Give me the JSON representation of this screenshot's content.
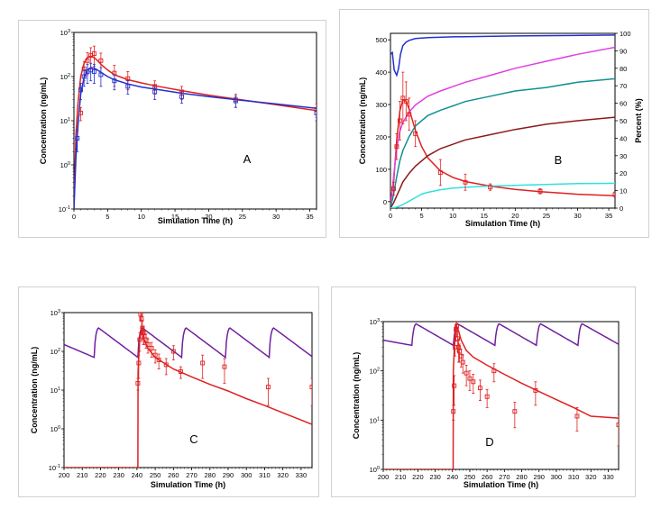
{
  "chart_data": [
    {
      "panel": "A",
      "type": "line",
      "xlabel": "Simulation Time (h)",
      "ylabel": "Concentration (ng/mL)",
      "xlim": [
        0,
        36
      ],
      "ylim": [
        0.1,
        1000
      ],
      "yscale": "log",
      "xticks": [
        "0",
        "5",
        "10",
        "15",
        "20",
        "25",
        "30",
        "35"
      ],
      "yticks": [
        "10-1",
        "100",
        "101",
        "102",
        "103"
      ],
      "series": [
        {
          "color": "#e02020",
          "kind": "line",
          "x": [
            0,
            0.3,
            0.6,
            1,
            1.5,
            2,
            2.5,
            3,
            3.5,
            4,
            5,
            6,
            8,
            10,
            12,
            16,
            20,
            24,
            30,
            36
          ],
          "y": [
            0.1,
            5,
            25,
            100,
            200,
            270,
            290,
            270,
            230,
            190,
            140,
            110,
            85,
            72,
            62,
            48,
            38,
            31,
            23,
            17
          ]
        },
        {
          "color": "#2030d0",
          "kind": "line",
          "x": [
            0,
            0.3,
            0.6,
            1,
            1.5,
            2,
            2.5,
            3,
            3.5,
            4,
            5,
            6,
            8,
            10,
            12,
            16,
            20,
            24,
            30,
            36
          ],
          "y": [
            0.1,
            1.5,
            8,
            40,
            95,
            140,
            160,
            155,
            140,
            125,
            100,
            85,
            68,
            58,
            52,
            42,
            35,
            30,
            24,
            19
          ]
        },
        {
          "color": "#e02020",
          "kind": "points",
          "x": [
            1,
            1.5,
            2,
            2.5,
            3,
            4,
            6,
            8,
            12,
            16,
            24,
            36
          ],
          "y": [
            15,
            150,
            230,
            300,
            330,
            230,
            120,
            90,
            60,
            45,
            30,
            18
          ],
          "err": [
            5,
            70,
            120,
            150,
            160,
            110,
            60,
            40,
            20,
            15,
            10,
            6
          ]
        },
        {
          "color": "#2030d0",
          "kind": "points",
          "x": [
            0.5,
            1,
            1.5,
            2,
            2.5,
            3,
            4,
            6,
            8,
            12,
            16,
            24,
            36
          ],
          "y": [
            4,
            50,
            100,
            130,
            140,
            130,
            110,
            80,
            60,
            45,
            35,
            28,
            15
          ],
          "err": [
            2,
            20,
            40,
            60,
            60,
            60,
            50,
            30,
            20,
            15,
            10,
            8,
            5
          ]
        }
      ],
      "label": "A"
    },
    {
      "panel": "B",
      "type": "line",
      "xlabel": "Simulation Time (h)",
      "ylabel": "Concentration (ng/mL)",
      "y2label": "Percent (%)",
      "xlim": [
        0,
        36
      ],
      "ylim": [
        -20,
        520
      ],
      "y2lim": [
        0,
        100
      ],
      "xticks": [
        "0",
        "5",
        "10",
        "15",
        "20",
        "25",
        "30",
        "35"
      ],
      "yticks": [
        "0",
        "100",
        "200",
        "300",
        "400",
        "500"
      ],
      "y2ticks": [
        "0",
        "10",
        "20",
        "30",
        "40",
        "50",
        "60",
        "70",
        "80",
        "90",
        "100"
      ],
      "series": [
        {
          "color": "#e02020",
          "kind": "line",
          "axis": "y",
          "x": [
            0,
            0.5,
            1,
            1.5,
            2,
            2.5,
            3,
            4,
            5,
            6,
            8,
            10,
            12,
            16,
            20,
            24,
            30,
            36
          ],
          "y": [
            0,
            60,
            190,
            280,
            315,
            310,
            285,
            220,
            170,
            135,
            95,
            75,
            62,
            48,
            38,
            31,
            23,
            18
          ]
        },
        {
          "color": "#2030d0",
          "kind": "line",
          "axis": "y2",
          "x": [
            0,
            0.3,
            0.6,
            1,
            1.3,
            1.6,
            2,
            2.5,
            3,
            4,
            6,
            10,
            20,
            36
          ],
          "y": [
            88,
            89,
            79,
            76,
            80,
            88,
            93,
            95,
            96,
            97,
            97.5,
            98,
            98.5,
            99
          ]
        },
        {
          "color": "#e040e0",
          "kind": "line",
          "axis": "y2",
          "x": [
            0,
            0.5,
            1,
            1.5,
            2,
            3,
            4,
            6,
            8,
            12,
            16,
            20,
            25,
            30,
            36
          ],
          "y": [
            0,
            18,
            34,
            44,
            49,
            55,
            59,
            64,
            67,
            72,
            76,
            80,
            84,
            88,
            92
          ]
        },
        {
          "color": "#109090",
          "kind": "line",
          "axis": "y2",
          "x": [
            0,
            0.5,
            1,
            1.5,
            2,
            3,
            4,
            6,
            8,
            12,
            16,
            20,
            25,
            30,
            36
          ],
          "y": [
            0,
            8,
            18,
            27,
            33,
            41,
            47,
            53,
            56,
            61,
            64,
            67,
            69,
            72,
            74
          ]
        },
        {
          "color": "#8b1a1a",
          "kind": "line",
          "axis": "y2",
          "x": [
            0,
            0.5,
            1,
            1.5,
            2,
            3,
            4,
            6,
            8,
            12,
            16,
            20,
            25,
            30,
            36
          ],
          "y": [
            0,
            3,
            7,
            11,
            15,
            20,
            24,
            30,
            34,
            39,
            42,
            45,
            48,
            50,
            52
          ]
        },
        {
          "color": "#30e0e0",
          "kind": "line",
          "axis": "y2",
          "x": [
            0,
            1,
            2,
            3,
            4,
            5,
            6,
            8,
            10,
            15,
            20,
            25,
            30,
            36
          ],
          "y": [
            0,
            0.5,
            2,
            4,
            6,
            8,
            9,
            10.5,
            11.5,
            12.5,
            13,
            13.5,
            14,
            14.2
          ]
        },
        {
          "color": "#e02020",
          "kind": "points",
          "axis": "y",
          "x": [
            0.5,
            1,
            1.5,
            2,
            2.5,
            3,
            4,
            8,
            12,
            16,
            24,
            36
          ],
          "y": [
            40,
            170,
            250,
            320,
            310,
            270,
            210,
            90,
            60,
            45,
            32,
            22
          ],
          "err": [
            20,
            40,
            60,
            80,
            60,
            50,
            40,
            40,
            25,
            10,
            8,
            8
          ]
        }
      ],
      "label": "B"
    },
    {
      "panel": "C",
      "type": "line",
      "xlabel": "Simulation Time (h)",
      "ylabel": "Concentration (ng/mL)",
      "xlim": [
        200,
        336
      ],
      "ylim": [
        0.1,
        1000
      ],
      "yscale": "log",
      "xticks": [
        "200",
        "210",
        "220",
        "230",
        "240",
        "250",
        "260",
        "270",
        "280",
        "290",
        "300",
        "310",
        "320",
        "330"
      ],
      "yticks": [
        "10-1",
        "100",
        "101",
        "102",
        "103"
      ],
      "series": [
        {
          "color": "#7020a0",
          "kind": "sawtooth",
          "start": 200,
          "end": 336,
          "doses": [
            216.5,
            240.5,
            264.5,
            288.5,
            312.5
          ],
          "peak": 400,
          "trough": 70,
          "c0": 150,
          "tmax": 2.5
        },
        {
          "color": "#e02020",
          "kind": "line",
          "x": [
            200,
            240.5,
            240.6,
            241.5,
            242.5,
            243,
            244,
            246,
            250,
            260,
            270,
            280,
            290,
            300,
            310,
            320,
            336
          ],
          "y": [
            0.1,
            0.1,
            30,
            200,
            350,
            300,
            200,
            120,
            70,
            35,
            22,
            14,
            9.5,
            6,
            4,
            2.6,
            1.3
          ]
        },
        {
          "color": "#e02020",
          "kind": "points",
          "x": [
            240.5,
            241,
            241.5,
            242,
            242.5,
            243,
            243.5,
            244,
            245,
            246,
            248,
            250,
            252,
            256,
            260,
            264,
            276,
            288,
            312,
            336
          ],
          "y": [
            15,
            50,
            200,
            900,
            700,
            400,
            300,
            250,
            200,
            150,
            120,
            80,
            60,
            45,
            100,
            30,
            50,
            40,
            12,
            12
          ],
          "err": [
            5,
            30,
            100,
            300,
            300,
            200,
            150,
            100,
            80,
            60,
            50,
            30,
            25,
            20,
            40,
            10,
            30,
            25,
            8,
            8
          ]
        }
      ],
      "label": "C"
    },
    {
      "panel": "D",
      "type": "line",
      "xlabel": "Simulation Time (h)",
      "ylabel": "Concentration (ng/mL)",
      "xlim": [
        200,
        336
      ],
      "ylim": [
        1,
        1000
      ],
      "yscale": "log",
      "xticks": [
        "200",
        "210",
        "220",
        "230",
        "240",
        "250",
        "260",
        "270",
        "280",
        "290",
        "300",
        "310",
        "320",
        "330"
      ],
      "yticks": [
        "100",
        "101",
        "102",
        "103"
      ],
      "series": [
        {
          "color": "#7020a0",
          "kind": "sawtooth",
          "start": 200,
          "end": 336,
          "doses": [
            216.5,
            240.5,
            264.5,
            288.5,
            312.5
          ],
          "peak": 900,
          "trough": 330,
          "c0": 420,
          "tmax": 2.5
        },
        {
          "color": "#e02020",
          "kind": "line",
          "x": [
            200,
            240.4,
            240.5,
            241.5,
            242.5,
            243.5,
            245,
            248,
            252,
            260,
            270,
            280,
            290,
            300,
            310,
            320,
            336
          ],
          "y": [
            1,
            1,
            100,
            600,
            800,
            650,
            420,
            260,
            190,
            130,
            85,
            56,
            38,
            26,
            18,
            12,
            11
          ]
        },
        {
          "color": "#e02020",
          "kind": "points",
          "x": [
            240.5,
            241,
            241.5,
            242,
            242.5,
            243,
            243.5,
            244,
            245,
            246,
            248,
            250,
            252,
            256,
            260,
            264,
            276,
            288,
            312,
            336
          ],
          "y": [
            15,
            50,
            300,
            700,
            800,
            450,
            300,
            250,
            200,
            150,
            90,
            70,
            60,
            45,
            30,
            100,
            15,
            40,
            12,
            8
          ],
          "err": [
            5,
            30,
            100,
            300,
            300,
            200,
            150,
            100,
            80,
            60,
            40,
            30,
            25,
            20,
            12,
            40,
            8,
            20,
            6,
            5
          ]
        }
      ],
      "label": "D"
    }
  ]
}
